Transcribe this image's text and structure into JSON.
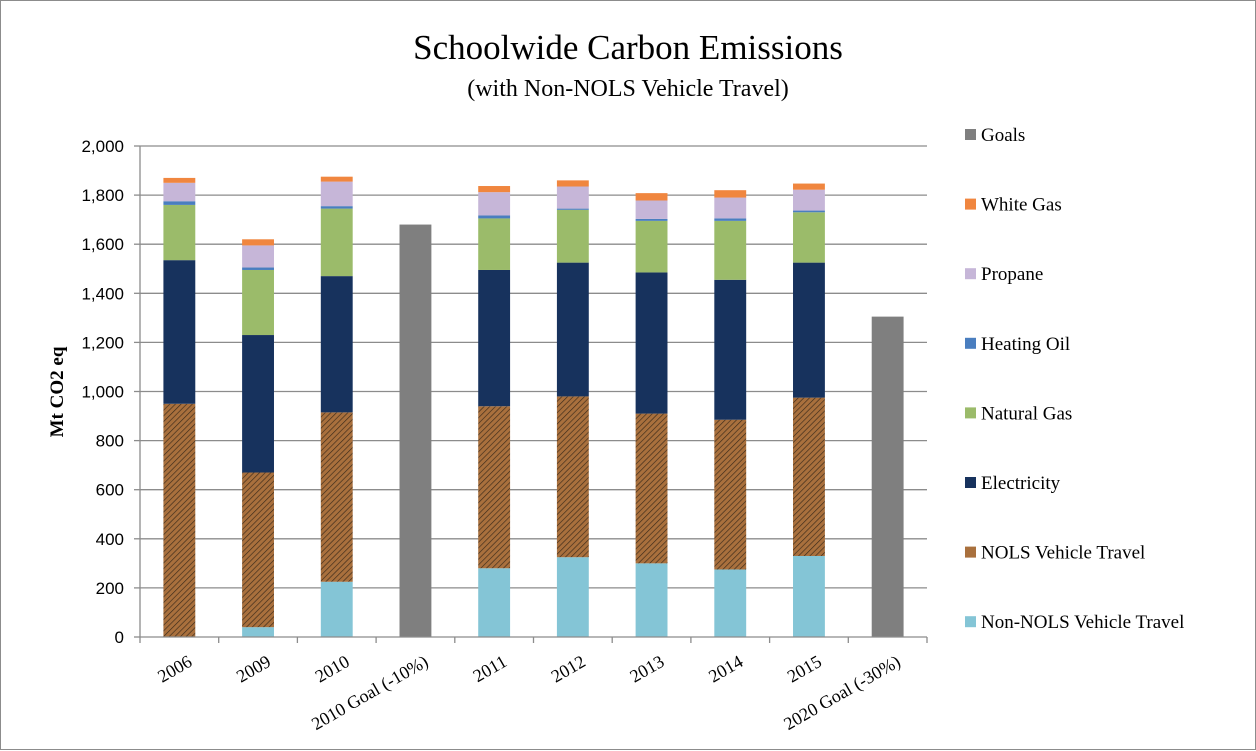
{
  "chart_data": {
    "type": "bar",
    "stacked": true,
    "title": "Schoolwide Carbon Emissions",
    "subtitle": "(with Non-NOLS Vehicle Travel)",
    "xlabel": "",
    "ylabel": "Mt CO2 eq",
    "ylim": [
      0,
      2000
    ],
    "ytick_step": 200,
    "ytick_labels": [
      "0",
      "200",
      "400",
      "600",
      "800",
      "1,000",
      "1,200",
      "1,400",
      "1,600",
      "1,800",
      "2,000"
    ],
    "grid": true,
    "legend_position": "right",
    "categories": [
      "2006",
      "2009",
      "2010",
      "2010 Goal (-10%)",
      "2011",
      "2012",
      "2013",
      "2014",
      "2015",
      "2020 Goal (-30%)"
    ],
    "series": [
      {
        "name": "Non-NOLS Vehicle Travel",
        "color": "#84c5d6",
        "pattern": "none",
        "values": [
          0,
          40,
          225,
          0,
          280,
          325,
          300,
          275,
          330,
          0
        ]
      },
      {
        "name": "NOLS Vehicle Travel",
        "color": "#a9703d",
        "pattern": "hatch",
        "values": [
          950,
          630,
          690,
          0,
          660,
          655,
          610,
          610,
          645,
          0
        ]
      },
      {
        "name": "Electricity",
        "color": "#17325d",
        "pattern": "none",
        "values": [
          585,
          560,
          555,
          0,
          555,
          545,
          575,
          570,
          550,
          0
        ]
      },
      {
        "name": "Natural Gas",
        "color": "#9bbb6a",
        "pattern": "none",
        "values": [
          225,
          265,
          275,
          0,
          210,
          215,
          210,
          240,
          205,
          0
        ]
      },
      {
        "name": "Heating Oil",
        "color": "#4a7ebf",
        "pattern": "none",
        "values": [
          15,
          10,
          10,
          0,
          12,
          5,
          8,
          10,
          7,
          0
        ]
      },
      {
        "name": "Propane",
        "color": "#c6b6d8",
        "pattern": "none",
        "values": [
          75,
          90,
          100,
          0,
          95,
          90,
          75,
          85,
          85,
          0
        ]
      },
      {
        "name": "White Gas",
        "color": "#f0863f",
        "pattern": "none",
        "values": [
          20,
          25,
          20,
          0,
          25,
          25,
          30,
          30,
          25,
          0
        ]
      },
      {
        "name": "Goals",
        "color": "#7f7f7f",
        "pattern": "none",
        "values": [
          0,
          0,
          0,
          1680,
          0,
          0,
          0,
          0,
          0,
          1305
        ]
      }
    ]
  }
}
